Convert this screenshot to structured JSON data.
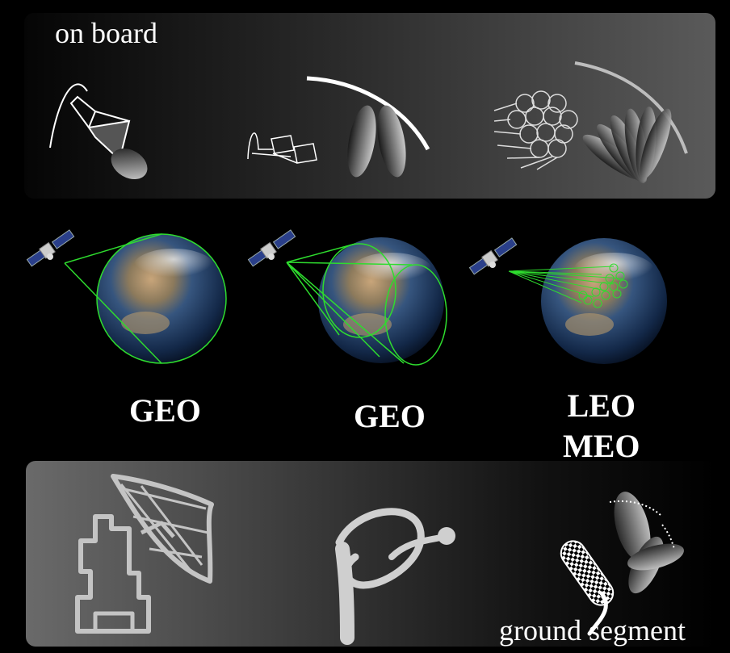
{
  "onboard": {
    "title": "on board"
  },
  "ground": {
    "title": "ground segment"
  },
  "orbits": [
    {
      "line1": "GEO",
      "line2": ""
    },
    {
      "line1": "GEO",
      "line2": ""
    },
    {
      "line1": "LEO",
      "line2": "MEO"
    }
  ],
  "colors": {
    "beam_green": "#2edc2e",
    "panel_light": "#5a5a5a",
    "antenna_grey": "#c4c4c4"
  }
}
